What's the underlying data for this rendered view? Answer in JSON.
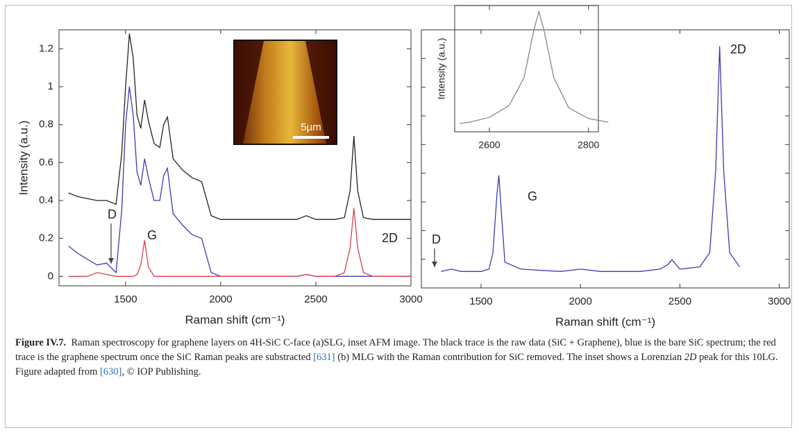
{
  "chart_data": [
    {
      "type": "line",
      "x_label": "Raman shift (cm⁻¹)",
      "y_label": "Intensity (a.u.)",
      "xlim": [
        1150,
        3000
      ],
      "ylim": [
        -0.05,
        1.3
      ],
      "xticks": [
        1500,
        2000,
        2500,
        3000
      ],
      "yticks": [
        0,
        0.2,
        0.4,
        0.6,
        0.8,
        1,
        1.2
      ],
      "x": [
        1200,
        1250,
        1300,
        1350,
        1400,
        1450,
        1480,
        1500,
        1520,
        1540,
        1560,
        1580,
        1600,
        1620,
        1650,
        1680,
        1700,
        1720,
        1750,
        1800,
        1850,
        1900,
        1950,
        2000,
        2200,
        2400,
        2450,
        2500,
        2600,
        2650,
        2680,
        2700,
        2720,
        2750,
        2800,
        2900,
        3000
      ],
      "series": [
        {
          "color": "#222222",
          "values": [
            0.44,
            0.42,
            0.41,
            0.4,
            0.4,
            0.38,
            0.65,
            1.0,
            1.28,
            1.15,
            0.85,
            0.78,
            0.93,
            0.82,
            0.7,
            0.68,
            0.8,
            0.84,
            0.62,
            0.56,
            0.52,
            0.5,
            0.32,
            0.3,
            0.3,
            0.3,
            0.32,
            0.3,
            0.3,
            0.31,
            0.45,
            0.74,
            0.45,
            0.31,
            0.3,
            0.3,
            0.3
          ]
        },
        {
          "color": "#3a3ab4",
          "values": [
            0.16,
            0.12,
            0.09,
            0.06,
            0.07,
            0.02,
            0.35,
            0.8,
            1.0,
            0.85,
            0.55,
            0.48,
            0.62,
            0.52,
            0.4,
            0.4,
            0.53,
            0.57,
            0.33,
            0.27,
            0.22,
            0.2,
            0.02,
            0.0,
            0.0,
            0.0,
            0.01,
            0.0,
            0.0,
            0.0,
            0.0,
            0.0,
            0.0,
            0.0,
            0.0,
            0.0,
            0.0
          ]
        },
        {
          "color": "#d8404e",
          "values": [
            0,
            0,
            0,
            0.02,
            0.01,
            0,
            0,
            0,
            0,
            0,
            0.01,
            0.06,
            0.19,
            0.05,
            0,
            0,
            0,
            0,
            0,
            0,
            0,
            0,
            0,
            0,
            0,
            0,
            0.01,
            0,
            0,
            0.02,
            0.15,
            0.36,
            0.15,
            0.02,
            0,
            0,
            0
          ]
        }
      ],
      "annotations": [
        "D",
        "G",
        "2D"
      ],
      "inset_image": {
        "scale_label": "5µm"
      }
    },
    {
      "type": "line",
      "x_label": "Raman shift (cm⁻¹)",
      "xlim": [
        1200,
        3050
      ],
      "ylim": [
        -0.05,
        1.05
      ],
      "xticks": [
        1500,
        2000,
        2500,
        3000
      ],
      "x": [
        1300,
        1350,
        1400,
        1500,
        1540,
        1560,
        1580,
        1590,
        1600,
        1620,
        1700,
        1900,
        2000,
        2100,
        2300,
        2400,
        2440,
        2460,
        2500,
        2600,
        2650,
        2680,
        2700,
        2720,
        2750,
        2800
      ],
      "series": [
        {
          "color": "#3a3ab4",
          "values": [
            0.02,
            0.03,
            0.02,
            0.02,
            0.03,
            0.1,
            0.35,
            0.43,
            0.3,
            0.06,
            0.03,
            0.02,
            0.03,
            0.02,
            0.02,
            0.03,
            0.05,
            0.07,
            0.03,
            0.04,
            0.1,
            0.45,
            0.98,
            0.45,
            0.1,
            0.04
          ]
        }
      ],
      "annotations": [
        "D",
        "G",
        "2D"
      ],
      "inset": {
        "type": "line",
        "y_label": "Intensity (a.u.)",
        "xlim": [
          2530,
          2820
        ],
        "ylim": [
          0,
          1.05
        ],
        "xticks": [
          2600,
          2800
        ],
        "x": [
          2540,
          2560,
          2600,
          2640,
          2670,
          2690,
          2700,
          2710,
          2730,
          2760,
          2800,
          2840
        ],
        "values": [
          0.07,
          0.08,
          0.12,
          0.22,
          0.45,
          0.85,
          1.0,
          0.85,
          0.45,
          0.2,
          0.11,
          0.08
        ],
        "color": "#888888"
      }
    }
  ],
  "caption": {
    "label": "Figure IV.7.",
    "text_1": "Raman spectroscopy for graphene layers on 4H-SiC C-face (a)SLG, inset AFM image. The black trace is the raw data (SiC + Graphene), blue is the bare SiC spectrum; the red trace is the graphene spectrum once the SiC Raman peaks are substracted",
    "ref_1": "[631]",
    "text_2": "(b) MLG with the Raman contribution for SiC removed. The inset shows a Lorenzian",
    "italic": "2D",
    "text_3": "peak for this 10LG. Figure adapted from",
    "ref_2": "[630]",
    "text_4": ", © IOP Publishing."
  }
}
